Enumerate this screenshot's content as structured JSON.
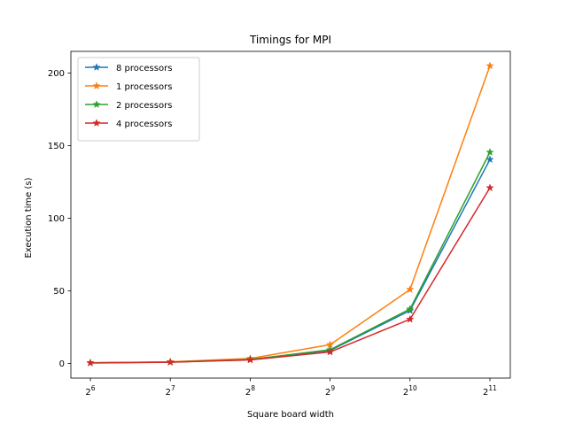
{
  "chart_data": {
    "type": "line",
    "title": "Timings for MPI",
    "xlabel": "Square board width",
    "ylabel": "Execution time (s)",
    "x": [
      64,
      128,
      256,
      512,
      1024,
      2048
    ],
    "x_tick_labels": [
      {
        "base": "2",
        "exp": "6"
      },
      {
        "base": "2",
        "exp": "7"
      },
      {
        "base": "2",
        "exp": "8"
      },
      {
        "base": "2",
        "exp": "9"
      },
      {
        "base": "2",
        "exp": "10"
      },
      {
        "base": "2",
        "exp": "11"
      }
    ],
    "x_scale": "log2",
    "y_ticks": [
      0,
      50,
      100,
      150,
      200
    ],
    "ylim": [
      -10,
      215
    ],
    "grid": false,
    "legend_position": "upper-left",
    "marker": "star",
    "series": [
      {
        "name": "8 processors",
        "color": "#1f77b4",
        "values": [
          0.5,
          1.0,
          2.8,
          9.0,
          36.5,
          140.5
        ]
      },
      {
        "name": "1 processors",
        "color": "#ff7f0e",
        "values": [
          0.5,
          1.2,
          3.5,
          13.0,
          51.0,
          205.0
        ]
      },
      {
        "name": "2 processors",
        "color": "#2ca02c",
        "values": [
          0.5,
          1.0,
          2.8,
          9.5,
          37.5,
          145.5
        ]
      },
      {
        "name": "4 processors",
        "color": "#d62728",
        "values": [
          0.4,
          0.9,
          2.5,
          8.0,
          30.5,
          121.0
        ]
      }
    ]
  }
}
